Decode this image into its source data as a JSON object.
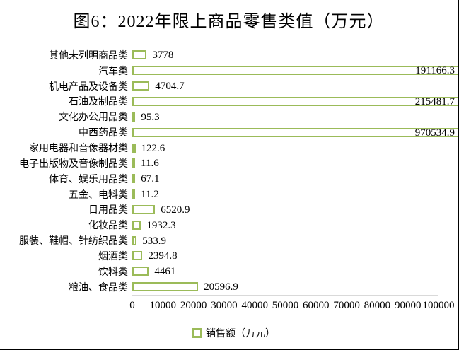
{
  "chart_data": {
    "type": "bar",
    "orientation": "horizontal",
    "title": "图6：2022年限上商品零售类值（万元）",
    "legend": "销售额（万元）",
    "categories": [
      "其他未列明商品类",
      "汽车类",
      "机电产品及设备类",
      "石油及制品类",
      "文化办公用品类",
      "中西药品类",
      "家用电器和音像器材类",
      "电子出版物及音像制品类",
      "体育、娱乐用品类",
      "五金、电料类",
      "日用品类",
      "化妆品类",
      "服装、鞋帽、针纺织品类",
      "烟酒类",
      "饮料类",
      "粮油、食品类"
    ],
    "values": [
      3778,
      191166.3,
      4704.7,
      215481.7,
      95.3,
      970534.9,
      122.6,
      11.6,
      67.1,
      11.2,
      6520.9,
      1932.3,
      533.9,
      2394.8,
      4461,
      20596.9
    ],
    "value_labels": [
      "3778",
      "191166.3",
      "4704.7",
      "215481.7",
      "95.3",
      "970534.9",
      "122.6",
      "11.6",
      "67.1",
      "11.2",
      "6520.9",
      "1932.3",
      "533.9",
      "2394.8",
      "4461",
      "20596.9"
    ],
    "x_ticks": [
      "0",
      "10000",
      "20000",
      "30000",
      "40000",
      "50000",
      "60000",
      "70000",
      "80000",
      "90000",
      "100000"
    ],
    "xlim": [
      0,
      100000
    ],
    "series_name": "销售额（万元）",
    "bar_border_color": "#9BBB59",
    "bar_fill_color": "#ffffff",
    "axis_line_color": "#D9D9D9",
    "grid": false,
    "legend_position": "bottom"
  }
}
